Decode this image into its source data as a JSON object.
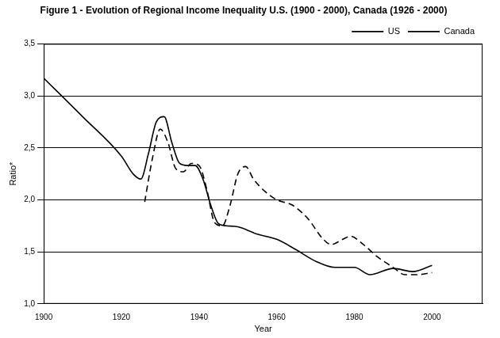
{
  "chart_data": {
    "type": "line",
    "title": "Figure 1 - Evolution of Regional Income Inequality U.S. (1900 - 2000), Canada (1926 - 2000)",
    "x_label": "Year",
    "y_label": "Ratio*",
    "xlim": [
      1900,
      2013
    ],
    "xticks": [
      1900,
      1920,
      1940,
      1960,
      1980,
      2000
    ],
    "ylim": [
      1.0,
      3.5
    ],
    "yticks": [
      {
        "value": 1.0,
        "label": "1,0"
      },
      {
        "value": 1.5,
        "label": "1,5"
      },
      {
        "value": 2.0,
        "label": "2,0"
      },
      {
        "value": 2.5,
        "label": "2,5"
      },
      {
        "value": 3.0,
        "label": "3,0"
      },
      {
        "value": 3.5,
        "label": "3,5"
      }
    ],
    "grid": true,
    "legend": "upper right",
    "series": [
      {
        "name": "US",
        "color": "#000000",
        "line_style": "solid",
        "marker": "none",
        "x": [
          1900,
          1910,
          1920,
          1923,
          1925,
          1927,
          1929,
          1931,
          1933,
          1935,
          1937,
          1939,
          1941,
          1943,
          1945,
          1947,
          1950,
          1955,
          1960,
          1965,
          1970,
          1975,
          1980,
          1984,
          1990,
          1995,
          2000
        ],
        "values": [
          3.17,
          2.8,
          2.42,
          2.25,
          2.2,
          2.45,
          2.75,
          2.8,
          2.55,
          2.35,
          2.33,
          2.33,
          2.2,
          1.95,
          1.77,
          1.75,
          1.74,
          1.67,
          1.62,
          1.52,
          1.41,
          1.35,
          1.35,
          1.28,
          1.34,
          1.31,
          1.37
        ]
      },
      {
        "name": "Canada",
        "color": "#000000",
        "line_style": "dashed",
        "marker": "none",
        "x": [
          1926,
          1928,
          1930,
          1932,
          1934,
          1936,
          1938,
          1940,
          1942,
          1944,
          1946,
          1948,
          1950,
          1952,
          1954,
          1957,
          1960,
          1964,
          1968,
          1972,
          1974,
          1977,
          1979,
          1982,
          1986,
          1990,
          1993,
          1996,
          2000
        ],
        "values": [
          1.98,
          2.4,
          2.68,
          2.55,
          2.3,
          2.27,
          2.35,
          2.33,
          2.1,
          1.78,
          1.75,
          1.95,
          2.25,
          2.32,
          2.2,
          2.08,
          2.0,
          1.95,
          1.82,
          1.62,
          1.57,
          1.62,
          1.65,
          1.58,
          1.45,
          1.35,
          1.28,
          1.28,
          1.3
        ]
      }
    ]
  }
}
